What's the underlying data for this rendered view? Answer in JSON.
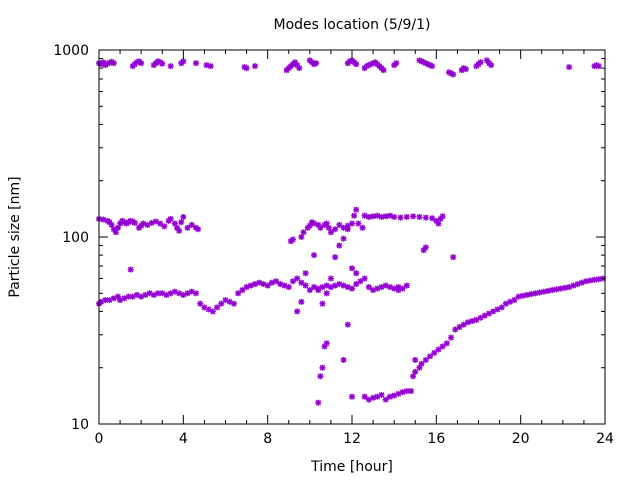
{
  "chart_data": {
    "type": "scatter",
    "title": "Modes location (5/9/1)",
    "xlabel": "Time [hour]",
    "ylabel": "Particle size [nm]",
    "xlim": [
      0,
      24
    ],
    "ylim": [
      10,
      1000
    ],
    "yscale": "log",
    "x_ticks": [
      0,
      4,
      8,
      12,
      16,
      20,
      24
    ],
    "x_tick_labels": [
      "0",
      "4",
      "8",
      "12",
      "16",
      "20",
      "24"
    ],
    "y_ticks": [
      10,
      100,
      1000
    ],
    "y_tick_labels": [
      "10",
      "100",
      "1000"
    ],
    "grid": false,
    "legend": "none",
    "marker_color": "#9400d3",
    "series": [
      {
        "points": [
          [
            0.0,
            850
          ],
          [
            0.1,
            840
          ],
          [
            0.2,
            860
          ],
          [
            0.3,
            830
          ],
          [
            0.4,
            845
          ],
          [
            0.5,
            855
          ],
          [
            0.6,
            865
          ],
          [
            0.7,
            850
          ],
          [
            1.6,
            820
          ],
          [
            1.7,
            840
          ],
          [
            1.8,
            860
          ],
          [
            1.9,
            870
          ],
          [
            2.0,
            850
          ],
          [
            2.6,
            830
          ],
          [
            2.7,
            850
          ],
          [
            2.8,
            870
          ],
          [
            2.9,
            860
          ],
          [
            3.0,
            845
          ],
          [
            3.4,
            820
          ],
          [
            3.9,
            850
          ],
          [
            4.0,
            870
          ],
          [
            4.6,
            850
          ],
          [
            5.1,
            830
          ],
          [
            5.3,
            820
          ],
          [
            6.9,
            810
          ],
          [
            7.0,
            800
          ],
          [
            7.4,
            820
          ],
          [
            8.9,
            780
          ],
          [
            9.0,
            800
          ],
          [
            9.1,
            820
          ],
          [
            9.2,
            840
          ],
          [
            9.3,
            860
          ],
          [
            9.4,
            830
          ],
          [
            9.5,
            800
          ],
          [
            10.0,
            880
          ],
          [
            10.1,
            860
          ],
          [
            10.2,
            840
          ],
          [
            10.3,
            850
          ],
          [
            11.8,
            850
          ],
          [
            11.9,
            870
          ],
          [
            12.0,
            880
          ],
          [
            12.1,
            860
          ],
          [
            12.2,
            840
          ],
          [
            12.6,
            800
          ],
          [
            12.7,
            820
          ],
          [
            12.8,
            830
          ],
          [
            12.9,
            840
          ],
          [
            13.0,
            850
          ],
          [
            13.1,
            860
          ],
          [
            13.2,
            840
          ],
          [
            13.3,
            820
          ],
          [
            13.4,
            800
          ],
          [
            13.5,
            780
          ],
          [
            14.0,
            830
          ],
          [
            14.1,
            850
          ],
          [
            15.2,
            880
          ],
          [
            15.3,
            870
          ],
          [
            15.4,
            860
          ],
          [
            15.5,
            850
          ],
          [
            15.6,
            840
          ],
          [
            15.7,
            830
          ],
          [
            15.8,
            820
          ],
          [
            16.6,
            760
          ],
          [
            16.7,
            750
          ],
          [
            16.8,
            740
          ],
          [
            17.2,
            780
          ],
          [
            17.3,
            800
          ],
          [
            17.4,
            790
          ],
          [
            17.9,
            820
          ],
          [
            18.0,
            840
          ],
          [
            18.1,
            860
          ],
          [
            18.4,
            880
          ],
          [
            18.5,
            850
          ],
          [
            18.6,
            830
          ],
          [
            22.3,
            810
          ],
          [
            23.5,
            820
          ],
          [
            23.6,
            830
          ],
          [
            23.7,
            820
          ],
          [
            0.0,
            125
          ],
          [
            0.2,
            124
          ],
          [
            0.4,
            122
          ],
          [
            0.5,
            120
          ],
          [
            0.6,
            116
          ],
          [
            0.7,
            110
          ],
          [
            0.8,
            106
          ],
          [
            0.9,
            112
          ],
          [
            1.0,
            118
          ],
          [
            1.1,
            122
          ],
          [
            1.2,
            120
          ],
          [
            1.3,
            118
          ],
          [
            1.4,
            120
          ],
          [
            1.5,
            122
          ],
          [
            1.6,
            121
          ],
          [
            1.7,
            119
          ],
          [
            1.9,
            112
          ],
          [
            2.0,
            115
          ],
          [
            2.1,
            118
          ],
          [
            2.3,
            116
          ],
          [
            2.5,
            119
          ],
          [
            2.7,
            121
          ],
          [
            2.9,
            118
          ],
          [
            3.1,
            114
          ],
          [
            3.3,
            122
          ],
          [
            3.4,
            125
          ],
          [
            3.6,
            118
          ],
          [
            3.7,
            112
          ],
          [
            3.8,
            108
          ],
          [
            3.9,
            120
          ],
          [
            4.0,
            128
          ],
          [
            4.2,
            112
          ],
          [
            4.4,
            116
          ],
          [
            4.6,
            112
          ],
          [
            4.7,
            110
          ],
          [
            9.1,
            95
          ],
          [
            9.2,
            97
          ],
          [
            9.6,
            100
          ],
          [
            9.7,
            106
          ],
          [
            9.9,
            112
          ],
          [
            10.0,
            115
          ],
          [
            10.1,
            120
          ],
          [
            10.2,
            118
          ],
          [
            10.4,
            116
          ],
          [
            10.5,
            112
          ],
          [
            10.7,
            116
          ],
          [
            10.8,
            118
          ],
          [
            10.9,
            112
          ],
          [
            11.0,
            106
          ],
          [
            11.2,
            110
          ],
          [
            11.4,
            116
          ],
          [
            11.6,
            112
          ],
          [
            11.8,
            115
          ],
          [
            12.0,
            118
          ],
          [
            12.1,
            130
          ],
          [
            12.2,
            140
          ],
          [
            12.3,
            118
          ],
          [
            12.5,
            112
          ],
          [
            12.6,
            130
          ],
          [
            12.8,
            128
          ],
          [
            13.0,
            129
          ],
          [
            13.2,
            130
          ],
          [
            13.4,
            128
          ],
          [
            13.6,
            129
          ],
          [
            13.8,
            130
          ],
          [
            14.0,
            128
          ],
          [
            14.3,
            127
          ],
          [
            14.6,
            128
          ],
          [
            14.9,
            129
          ],
          [
            15.2,
            128
          ],
          [
            15.5,
            127
          ],
          [
            15.8,
            126
          ],
          [
            16.0,
            122
          ],
          [
            16.1,
            118
          ],
          [
            16.2,
            125
          ],
          [
            16.3,
            129
          ],
          [
            0.0,
            44
          ],
          [
            0.1,
            45
          ],
          [
            0.3,
            46
          ],
          [
            0.5,
            46
          ],
          [
            0.7,
            47
          ],
          [
            0.9,
            48
          ],
          [
            1.0,
            46
          ],
          [
            1.2,
            47
          ],
          [
            1.4,
            48
          ],
          [
            1.6,
            48
          ],
          [
            1.8,
            49
          ],
          [
            2.0,
            48
          ],
          [
            2.2,
            49
          ],
          [
            2.4,
            50
          ],
          [
            2.6,
            49
          ],
          [
            2.8,
            50
          ],
          [
            3.0,
            50
          ],
          [
            3.2,
            49
          ],
          [
            3.4,
            50
          ],
          [
            3.6,
            51
          ],
          [
            3.8,
            50
          ],
          [
            4.0,
            49
          ],
          [
            4.2,
            50
          ],
          [
            4.4,
            51
          ],
          [
            4.6,
            50
          ],
          [
            4.8,
            44
          ],
          [
            5.0,
            42
          ],
          [
            5.2,
            41
          ],
          [
            5.4,
            40
          ],
          [
            5.6,
            42
          ],
          [
            5.8,
            44
          ],
          [
            6.0,
            46
          ],
          [
            6.2,
            45
          ],
          [
            6.4,
            44
          ],
          [
            6.6,
            50
          ],
          [
            6.8,
            52
          ],
          [
            7.0,
            54
          ],
          [
            7.2,
            55
          ],
          [
            7.4,
            56
          ],
          [
            7.6,
            57
          ],
          [
            7.8,
            56
          ],
          [
            8.0,
            55
          ],
          [
            8.2,
            57
          ],
          [
            8.4,
            58
          ],
          [
            8.6,
            56
          ],
          [
            8.8,
            55
          ],
          [
            9.0,
            54
          ],
          [
            9.2,
            58
          ],
          [
            9.4,
            60
          ],
          [
            9.6,
            57
          ],
          [
            9.8,
            55
          ],
          [
            10.0,
            52
          ],
          [
            10.2,
            54
          ],
          [
            10.4,
            53
          ],
          [
            10.6,
            54
          ],
          [
            10.8,
            55
          ],
          [
            11.0,
            54
          ],
          [
            11.2,
            55
          ],
          [
            11.4,
            56
          ],
          [
            11.6,
            55
          ],
          [
            11.8,
            54
          ],
          [
            12.0,
            53
          ],
          [
            12.2,
            56
          ],
          [
            12.4,
            58
          ],
          [
            12.6,
            60
          ],
          [
            12.8,
            54
          ],
          [
            13.0,
            52
          ],
          [
            13.2,
            53
          ],
          [
            13.4,
            54
          ],
          [
            13.6,
            55
          ],
          [
            13.8,
            54
          ],
          [
            14.0,
            53
          ],
          [
            14.2,
            52
          ],
          [
            14.4,
            53
          ],
          [
            9.8,
            64
          ],
          [
            10.2,
            80
          ],
          [
            10.4,
            52
          ],
          [
            10.6,
            44
          ],
          [
            10.8,
            50
          ],
          [
            11.2,
            78
          ],
          [
            11.4,
            90
          ],
          [
            11.6,
            98
          ],
          [
            11.8,
            110
          ],
          [
            12.0,
            68
          ],
          [
            12.2,
            64
          ],
          [
            11.0,
            60
          ],
          [
            9.4,
            40
          ],
          [
            9.6,
            45
          ],
          [
            11.8,
            34
          ],
          [
            10.4,
            13
          ],
          [
            10.5,
            18
          ],
          [
            10.6,
            20
          ],
          [
            10.7,
            26
          ],
          [
            10.8,
            27
          ],
          [
            11.6,
            22
          ],
          [
            12.0,
            14
          ],
          [
            12.6,
            14
          ],
          [
            12.8,
            13.5
          ],
          [
            13.0,
            13.8
          ],
          [
            13.2,
            14
          ],
          [
            13.4,
            14.3
          ],
          [
            13.6,
            13.5
          ],
          [
            13.8,
            14
          ],
          [
            14.0,
            14.2
          ],
          [
            14.2,
            14.5
          ],
          [
            14.4,
            14.8
          ],
          [
            14.6,
            15
          ],
          [
            14.8,
            15
          ],
          [
            14.9,
            18
          ],
          [
            15.0,
            19
          ],
          [
            15.2,
            20
          ],
          [
            15.3,
            21
          ],
          [
            15.5,
            22
          ],
          [
            15.7,
            23
          ],
          [
            15.9,
            24
          ],
          [
            16.1,
            25
          ],
          [
            16.3,
            26
          ],
          [
            16.5,
            27
          ],
          [
            16.7,
            29
          ],
          [
            16.9,
            32
          ],
          [
            17.1,
            33
          ],
          [
            17.3,
            34
          ],
          [
            17.5,
            35
          ],
          [
            17.7,
            35.5
          ],
          [
            17.9,
            36
          ],
          [
            18.1,
            37
          ],
          [
            18.3,
            38
          ],
          [
            18.5,
            39
          ],
          [
            18.7,
            40
          ],
          [
            18.9,
            41
          ],
          [
            19.1,
            42
          ],
          [
            19.3,
            44
          ],
          [
            19.5,
            45
          ],
          [
            19.7,
            46
          ],
          [
            19.9,
            48
          ],
          [
            20.1,
            48.5
          ],
          [
            20.3,
            49
          ],
          [
            20.5,
            49.5
          ],
          [
            20.7,
            50
          ],
          [
            20.9,
            50.5
          ],
          [
            21.1,
            51
          ],
          [
            21.3,
            51.5
          ],
          [
            21.5,
            52
          ],
          [
            21.7,
            52.5
          ],
          [
            21.9,
            53
          ],
          [
            22.1,
            53.5
          ],
          [
            22.3,
            54
          ],
          [
            22.5,
            55
          ],
          [
            22.7,
            56
          ],
          [
            22.9,
            57
          ],
          [
            23.1,
            58
          ],
          [
            23.3,
            58.5
          ],
          [
            23.5,
            59
          ],
          [
            23.7,
            59.5
          ],
          [
            23.9,
            60
          ],
          [
            1.5,
            67
          ],
          [
            14.2,
            54
          ],
          [
            14.6,
            55
          ],
          [
            15.0,
            22
          ],
          [
            15.4,
            85
          ],
          [
            15.5,
            88
          ],
          [
            16.8,
            78
          ]
        ]
      }
    ]
  }
}
